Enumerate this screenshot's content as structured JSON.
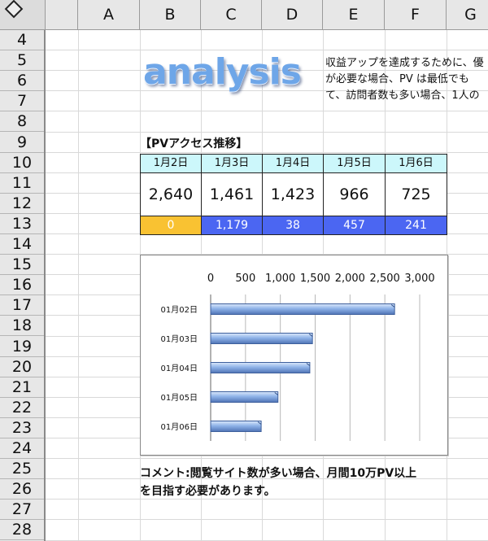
{
  "sheet": {
    "columns": [
      "A",
      "B",
      "C",
      "D",
      "E",
      "F",
      "G"
    ],
    "rows": [
      "4",
      "5",
      "6",
      "7",
      "8",
      "9",
      "10",
      "11",
      "12",
      "13",
      "14",
      "15",
      "16",
      "17",
      "18",
      "19",
      "20",
      "21",
      "22",
      "23",
      "24",
      "25",
      "26",
      "27",
      "28"
    ]
  },
  "logo_text": "analysis",
  "intro_lines": [
    "収益アップを達成するために、優",
    "が必要な場合、PV は最低でも",
    "て、訪問者数も多い場合、1人の"
  ],
  "pv_table": {
    "title": "【PVアクセス推移】",
    "dates": [
      "1月2日",
      "1月3日",
      "1月4日",
      "1月5日",
      "1月6日"
    ],
    "values": [
      "2,640",
      "1,461",
      "1,423",
      "966",
      "725"
    ],
    "diffs": [
      "0",
      "1,179",
      "38",
      "457",
      "241"
    ],
    "colors": {
      "first_diff": "#f9c232",
      "other_diff": "#4b66f2",
      "header_bg": "#ccf7fb"
    }
  },
  "chart_data": {
    "type": "bar",
    "orientation": "horizontal",
    "categories": [
      "01月02日",
      "01月03日",
      "01月04日",
      "01月05日",
      "01月06日"
    ],
    "values": [
      2640,
      1461,
      1423,
      966,
      725
    ],
    "x_ticks": [
      "0",
      "500",
      "1,000",
      "1,500",
      "2,000",
      "2,500",
      "3,000"
    ],
    "xlim": [
      0,
      3000
    ],
    "title": "",
    "xlabel": "",
    "ylabel": "",
    "grid": true,
    "bar_color": "#8fb3e8"
  },
  "comment_lines": [
    "コメント:閲覧サイト数が多い場合、月間10万PV以上",
    "を目指す必要があります。"
  ]
}
